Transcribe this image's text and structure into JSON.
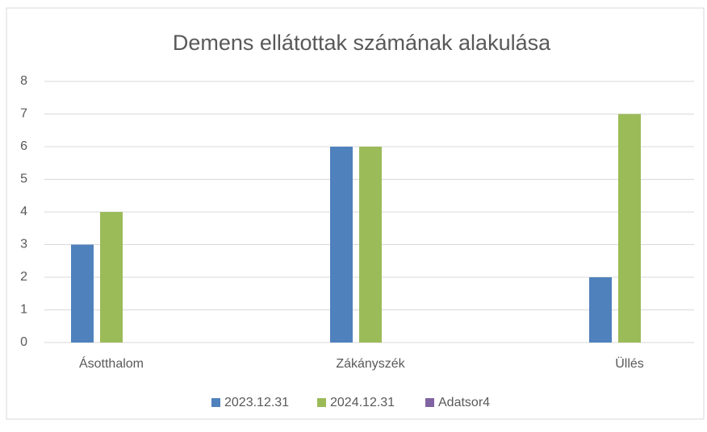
{
  "chart_data": {
    "type": "bar",
    "title": "Demens ellátottak számának alakulása",
    "categories": [
      "Ásotthalom",
      "Zákányszék",
      "Üllés"
    ],
    "series": [
      {
        "name": "2023.12.31",
        "color": "#4f81bd",
        "values": [
          3,
          6,
          2
        ]
      },
      {
        "name": "2024.12.31",
        "color": "#9bbb59",
        "values": [
          4,
          6,
          7
        ]
      },
      {
        "name": "Adatsor4",
        "color": "#8064a2",
        "values": [
          null,
          null,
          null
        ]
      }
    ],
    "ylim": [
      0,
      8
    ],
    "yticks": [
      0,
      1,
      2,
      3,
      4,
      5,
      6,
      7,
      8
    ],
    "grid": true,
    "legend": "bottom"
  }
}
